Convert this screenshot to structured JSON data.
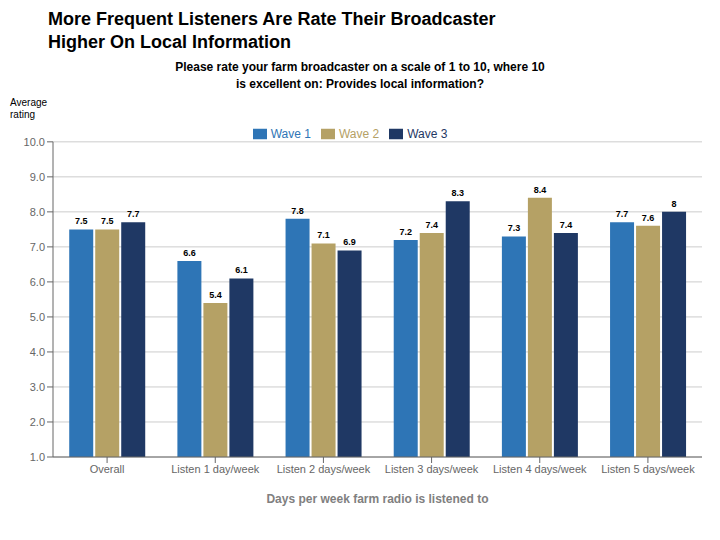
{
  "chart_data": {
    "type": "bar",
    "title": "More Frequent Listeners Are Rate Their Broadcaster\nHigher On Local Information",
    "subtitle": "Please rate your farm broadcaster on a scale of 1 to 10, where 10\nis excellent on: Provides local information?",
    "y_label": "Average\nrating",
    "x_label": "Days per week farm radio is listened to",
    "categories": [
      "Overall",
      "Listen 1 day/week",
      "Listen 2 days/week",
      "Listen 3 days/week",
      "Listen 4 days/week",
      "Listen 5 days/week"
    ],
    "series": [
      {
        "name": "Wave 1",
        "color": "#2e75b6",
        "values": [
          7.5,
          6.6,
          7.8,
          7.2,
          7.3,
          7.7
        ]
      },
      {
        "name": "Wave 2",
        "color": "#b5a165",
        "values": [
          7.5,
          5.4,
          7.1,
          7.4,
          8.4,
          7.6
        ]
      },
      {
        "name": "Wave 3",
        "color": "#1f3864",
        "values": [
          7.7,
          6.1,
          6.9,
          8.3,
          7.4,
          8.0
        ]
      }
    ],
    "ylim": [
      1.0,
      10.0
    ],
    "yticks": [
      {
        "value": 1.0,
        "label": "1.0"
      },
      {
        "value": 2.0,
        "label": "2.0"
      },
      {
        "value": 3.0,
        "label": "3.0"
      },
      {
        "value": 4.0,
        "label": "4.0"
      },
      {
        "value": 5.0,
        "label": "5.0"
      },
      {
        "value": 6.0,
        "label": "6.0"
      },
      {
        "value": 7.0,
        "label": "7.0"
      },
      {
        "value": 8.0,
        "label": "8.0"
      },
      {
        "value": 9.0,
        "label": "9.0"
      },
      {
        "value": 10.0,
        "label": "10.0"
      }
    ],
    "grid": true,
    "legend": "top",
    "data_labels": true
  }
}
